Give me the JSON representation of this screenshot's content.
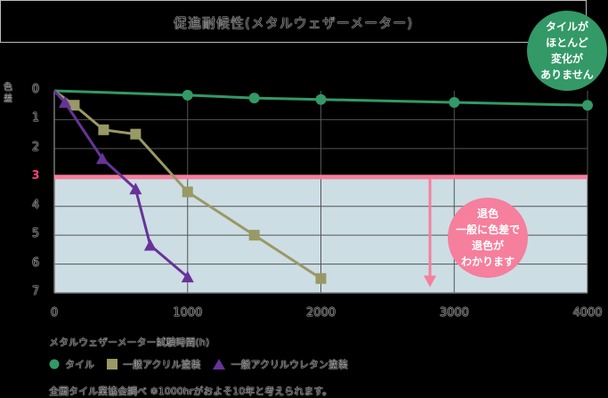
{
  "title": "促進耐候性(メタルウェザーメーター)",
  "callouts": {
    "tile": "タイルが\nほとんど\n変化が\nありません",
    "fade": "退色\n一般に色差で\n退色が\nわかります"
  },
  "axes": {
    "y_label": "色差",
    "y_ticks": [
      "0",
      "1",
      "2",
      "3",
      "4",
      "5",
      "6",
      "7"
    ],
    "y_highlight_tick": "3",
    "x_ticks": [
      "0",
      "1000",
      "2000",
      "3000",
      "4000"
    ],
    "x_label": "メタルウェザーメーター試験時間(h)"
  },
  "legend": [
    {
      "label": "タイル",
      "marker": "circle",
      "color": "#339966"
    },
    {
      "label": "一般アクリル塗装",
      "marker": "square",
      "color": "#999966"
    },
    {
      "label": "一般アクリルウレタン塗装",
      "marker": "triangle",
      "color": "#663399"
    }
  ],
  "footnote": "全国タイル業協会調べ ※1000hrがおよそ10年と考えられます。",
  "colors": {
    "threshold_line": "#f57f9c",
    "shaded_area": "#cddde4",
    "grid": "#555555"
  },
  "chart_data": {
    "type": "line",
    "title": "促進耐候性(メタルウェザーメーター)",
    "xlabel": "メタルウェザーメーター試験時間(h)",
    "ylabel": "色差",
    "xlim": [
      0,
      4000
    ],
    "ylim": [
      0,
      7
    ],
    "y_inverted": true,
    "grid": true,
    "threshold": {
      "y": 3,
      "label": "退色 一般に色差で退色がわかります"
    },
    "series": [
      {
        "name": "タイル",
        "marker": "circle",
        "color": "#339966",
        "x": [
          0,
          1000,
          1500,
          2000,
          3000,
          4000
        ],
        "y": [
          0,
          0.15,
          0.25,
          0.3,
          0.4,
          0.5
        ]
      },
      {
        "name": "一般アクリル塗装",
        "marker": "square",
        "color": "#999966",
        "x": [
          0,
          150,
          370,
          610,
          1000,
          1500,
          2000
        ],
        "y": [
          0,
          0.5,
          1.35,
          1.5,
          3.5,
          5.0,
          6.5
        ]
      },
      {
        "name": "一般アクリルウレタン塗装",
        "marker": "triangle",
        "color": "#663399",
        "x": [
          0,
          80,
          360,
          610,
          720,
          1000
        ],
        "y": [
          0,
          0.4,
          2.35,
          3.4,
          5.35,
          6.45
        ]
      }
    ]
  }
}
